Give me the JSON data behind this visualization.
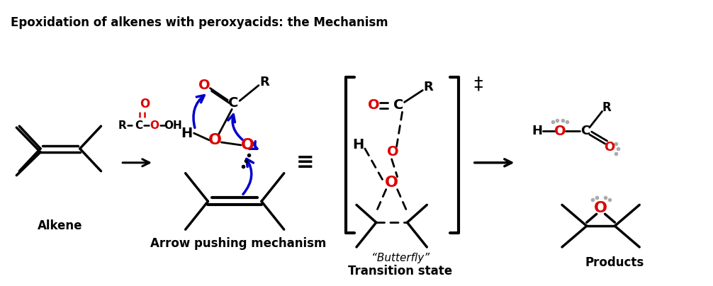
{
  "title": "Epoxidation of alkenes with peroxyacids: the Mechanism",
  "bg_color": "#ffffff",
  "red": "#dd0000",
  "blue": "#0000cc",
  "black": "#000000",
  "gray": "#aaaaaa",
  "label_alkene": "Alkene",
  "label_arrow_push": "Arrow pushing mechanism",
  "label_butterfly_1": "“Butterfly”",
  "label_butterfly_2": "Transition state",
  "label_products": "Products"
}
